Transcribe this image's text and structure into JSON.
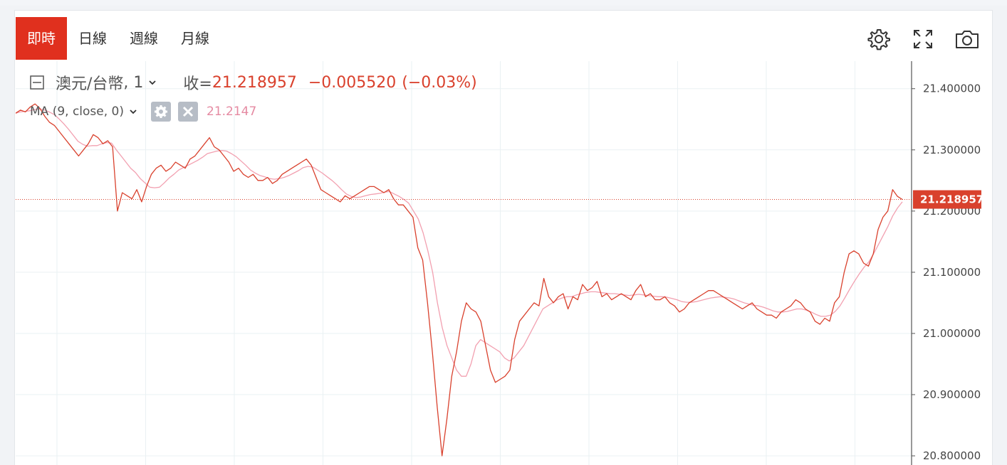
{
  "tabs": [
    {
      "label": "即時",
      "active": true
    },
    {
      "label": "日線",
      "active": false
    },
    {
      "label": "週線",
      "active": false
    },
    {
      "label": "月線",
      "active": false
    }
  ],
  "toolbar": {
    "icons": [
      "gear-icon",
      "fullscreen-icon",
      "camera-icon"
    ]
  },
  "legend": {
    "symbol": "澳元/台幣",
    "interval": "1",
    "close_label": "收=",
    "close_value": "21.218957",
    "change": "−0.005520",
    "change_pct": "(−0.03%)"
  },
  "indicator": {
    "label": "MA (9, close, 0)",
    "value": "21.2147"
  },
  "colors": {
    "accent": "#e0301e",
    "price": "#d9412d",
    "ma": "#f2a0b0",
    "grid": "#eaf1f3"
  },
  "chart_data": {
    "type": "line",
    "ylim": [
      20.785,
      21.445
    ],
    "yticks": [
      "21.400000",
      "21.300000",
      "21.200000",
      "21.100000",
      "21.000000",
      "20.900000",
      "20.800000"
    ],
    "ytick_values": [
      21.4,
      21.3,
      21.2,
      21.1,
      21.0,
      20.9,
      20.8
    ],
    "last_value_label": "21.218957",
    "last_value": 21.218957,
    "grid": true,
    "series": [
      {
        "values": [
          21.36,
          21.365,
          21.362,
          21.37,
          21.375,
          21.368,
          21.355,
          21.345,
          21.34,
          21.33,
          21.32,
          21.31,
          21.3,
          21.29,
          21.3,
          21.31,
          21.325,
          21.32,
          21.31,
          21.315,
          21.305,
          21.2,
          21.23,
          21.225,
          21.22,
          21.235,
          21.215,
          21.24,
          21.26,
          21.27,
          21.275,
          21.265,
          21.27,
          21.28,
          21.275,
          21.27,
          21.285,
          21.29,
          21.3,
          21.31,
          21.32,
          21.305,
          21.3,
          21.29,
          21.28,
          21.265,
          21.27,
          21.26,
          21.255,
          21.26,
          21.25,
          21.25,
          21.255,
          21.245,
          21.25,
          21.26,
          21.265,
          21.27,
          21.275,
          21.28,
          21.285,
          21.275,
          21.255,
          21.235,
          21.23,
          21.225,
          21.22,
          21.215,
          21.225,
          21.22,
          21.225,
          21.23,
          21.235,
          21.24,
          21.24,
          21.235,
          21.23,
          21.235,
          21.22,
          21.21,
          21.21,
          21.2,
          21.19,
          21.14,
          21.12,
          21.05,
          20.97,
          20.88,
          20.8,
          20.86,
          20.93,
          20.97,
          21.02,
          21.05,
          21.04,
          21.035,
          21.02,
          20.98,
          20.94,
          20.92,
          20.925,
          20.93,
          20.94,
          20.99,
          21.02,
          21.03,
          21.04,
          21.05,
          21.045,
          21.09,
          21.06,
          21.05,
          21.06,
          21.065,
          21.04,
          21.06,
          21.055,
          21.08,
          21.07,
          21.075,
          21.085,
          21.06,
          21.065,
          21.055,
          21.06,
          21.065,
          21.06,
          21.055,
          21.07,
          21.08,
          21.06,
          21.065,
          21.055,
          21.055,
          21.06,
          21.05,
          21.045,
          21.035,
          21.04,
          21.05,
          21.055,
          21.06,
          21.065,
          21.07,
          21.07,
          21.065,
          21.06,
          21.055,
          21.05,
          21.045,
          21.04,
          21.045,
          21.05,
          21.04,
          21.035,
          21.03,
          21.03,
          21.025,
          21.035,
          21.04,
          21.045,
          21.055,
          21.05,
          21.04,
          21.035,
          21.02,
          21.015,
          21.025,
          21.02,
          21.05,
          21.06,
          21.1,
          21.13,
          21.135,
          21.13,
          21.115,
          21.11,
          21.13,
          21.17,
          21.19,
          21.2,
          21.235,
          21.224,
          21.219
        ]
      },
      {
        "values": [
          21.36,
          21.362,
          21.363,
          21.364,
          21.366,
          21.367,
          21.365,
          21.362,
          21.358,
          21.351,
          21.343,
          21.334,
          21.324,
          21.314,
          21.309,
          21.306,
          21.307,
          21.307,
          21.31,
          21.312,
          21.311,
          21.3,
          21.29,
          21.28,
          21.27,
          21.263,
          21.253,
          21.246,
          21.239,
          21.238,
          21.239,
          21.246,
          21.254,
          21.26,
          21.267,
          21.271,
          21.275,
          21.279,
          21.283,
          21.288,
          21.294,
          21.296,
          21.298,
          21.299,
          21.298,
          21.294,
          21.289,
          21.282,
          21.275,
          21.267,
          21.262,
          21.258,
          21.256,
          21.253,
          21.252,
          21.253,
          21.255,
          21.258,
          21.262,
          21.266,
          21.271,
          21.273,
          21.272,
          21.267,
          21.262,
          21.256,
          21.25,
          21.243,
          21.235,
          21.228,
          21.224,
          21.222,
          21.223,
          21.225,
          21.227,
          21.228,
          21.229,
          21.231,
          21.232,
          21.228,
          21.224,
          21.219,
          21.213,
          21.2,
          21.187,
          21.165,
          21.135,
          21.1,
          21.05,
          21.01,
          20.98,
          20.96,
          20.94,
          20.93,
          20.93,
          20.95,
          20.98,
          20.99,
          20.985,
          20.98,
          20.975,
          20.97,
          20.96,
          20.955,
          20.96,
          20.97,
          20.98,
          20.995,
          21.01,
          21.025,
          21.04,
          21.045,
          21.05,
          21.055,
          21.058,
          21.06,
          21.06,
          21.063,
          21.065,
          21.067,
          21.068,
          21.068,
          21.067,
          21.066,
          21.065,
          21.065,
          21.064,
          21.063,
          21.062,
          21.063,
          21.064,
          21.063,
          21.062,
          21.061,
          21.06,
          21.06,
          21.059,
          21.057,
          21.055,
          21.052,
          21.051,
          21.051,
          21.052,
          21.054,
          21.056,
          21.058,
          21.059,
          21.06,
          21.059,
          21.058,
          21.056,
          21.053,
          21.05,
          21.048,
          21.046,
          21.045,
          21.043,
          21.04,
          21.037,
          21.035,
          21.035,
          21.036,
          21.038,
          21.04,
          21.04,
          21.038,
          21.035,
          21.031,
          21.028,
          21.028,
          21.03,
          21.036,
          21.045,
          21.058,
          21.072,
          21.085,
          21.097,
          21.108,
          21.117,
          21.13,
          21.145,
          21.16,
          21.175,
          21.192,
          21.205,
          21.215
        ]
      }
    ]
  }
}
